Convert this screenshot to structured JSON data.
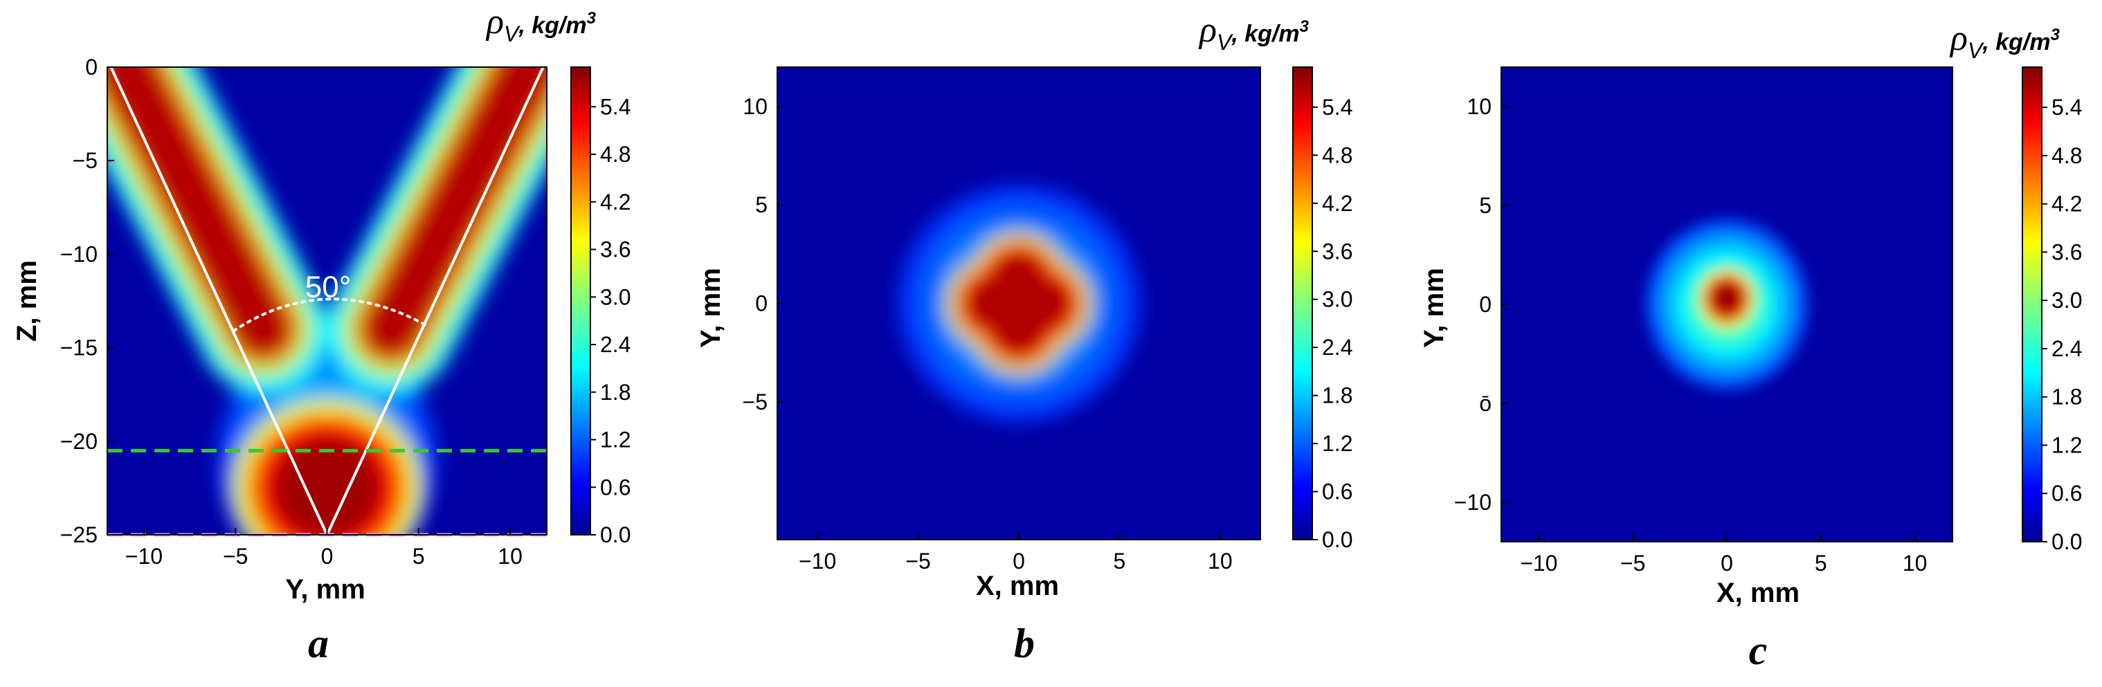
{
  "chart_data": [
    {
      "type": "heatmap",
      "panel_label": "a",
      "xlabel": "Y, mm",
      "ylabel": "Z, mm",
      "colorbar_label": "ρ",
      "colorbar_subscript": "V",
      "colorbar_unit": ", kg/m",
      "colorbar_unit_sup": "3",
      "xlim": [
        -12,
        12
      ],
      "ylim": [
        -25,
        0
      ],
      "xticks": [
        -10,
        -5,
        0,
        5,
        10
      ],
      "yticks": [
        0,
        -5,
        -10,
        -15,
        -20,
        -25
      ],
      "colorbar_ticks": [
        "5.4",
        "4.8",
        "4.2",
        "3.6",
        "3.0",
        "2.4",
        "1.8",
        "1.2",
        "0.6",
        "0.0"
      ],
      "colorbar_range": [
        0,
        5.9
      ],
      "colormap": "jet",
      "annotations": [
        {
          "text": "50°",
          "x": -1.2,
          "y": -12.3
        },
        {
          "kind": "line",
          "color": "#ffffff",
          "points": [
            [
              -11.8,
              0
            ],
            [
              0,
              -25
            ]
          ]
        },
        {
          "kind": "line",
          "color": "#ffffff",
          "points": [
            [
              11.8,
              0
            ],
            [
              0,
              -25
            ]
          ]
        },
        {
          "kind": "dotted-arc",
          "color": "#ffffff",
          "from": [
            -5.1,
            -14.1
          ],
          "apex": [
            0,
            -12.4
          ],
          "to": [
            5.6,
            -13.9
          ]
        },
        {
          "kind": "dashed-line",
          "color": "#33cc33",
          "y": -20.5
        },
        {
          "kind": "dashed-line",
          "color": "#dd99ee",
          "y": -25
        }
      ],
      "features": [
        {
          "shape": "jet",
          "from": [
            -11,
            0
          ],
          "to": [
            -3.5,
            -14
          ],
          "width_mm": 3.2,
          "peak": 5.9
        },
        {
          "shape": "jet",
          "from": [
            11,
            0
          ],
          "to": [
            3.5,
            -14
          ],
          "width_mm": 3.2,
          "peak": 5.9
        },
        {
          "shape": "blob",
          "center": [
            0,
            -22.5
          ],
          "radius_mm": [
            3.8,
            3.5
          ],
          "peak": 5.9
        },
        {
          "shape": "halo",
          "center": [
            0,
            -21
          ],
          "radius_mm": [
            6,
            6.5
          ],
          "peak": 2.6
        }
      ]
    },
    {
      "type": "heatmap",
      "panel_label": "b",
      "xlabel": "X, mm",
      "ylabel": "Y, mm",
      "colorbar_label": "ρ",
      "colorbar_subscript": "V",
      "colorbar_unit": ", kg/m",
      "colorbar_unit_sup": "3",
      "xlim": [
        -12,
        12
      ],
      "ylim": [
        -12,
        12
      ],
      "xticks": [
        -10,
        -5,
        0,
        5,
        10
      ],
      "yticks": [
        10,
        5,
        0,
        -5
      ],
      "colorbar_ticks": [
        "5.4",
        "4.8",
        "4.2",
        "3.6",
        "3.0",
        "2.4",
        "1.8",
        "1.2",
        "0.6",
        "0.0"
      ],
      "colorbar_range": [
        0,
        5.9
      ],
      "colormap": "jet",
      "features": [
        {
          "shape": "halo",
          "center": [
            0,
            0
          ],
          "radius_mm": [
            6,
            6
          ],
          "peak": 2.2
        },
        {
          "shape": "core",
          "center": [
            0,
            0
          ],
          "radius_mm": [
            2.8,
            2.8
          ],
          "peak": 5.8,
          "form": "four-lobed"
        }
      ]
    },
    {
      "type": "heatmap",
      "panel_label": "c",
      "xlabel": "X, mm",
      "ylabel": "Y, mm",
      "colorbar_label": "ρ",
      "colorbar_subscript": "V",
      "colorbar_unit": ", kg/m",
      "colorbar_unit_sup": "3",
      "xlim": [
        -12,
        12
      ],
      "ylim": [
        -12,
        12
      ],
      "xticks": [
        -10,
        -5,
        0,
        5,
        10
      ],
      "yticks": [
        10,
        5,
        0,
        -5,
        -10
      ],
      "ytick_labels": [
        "10",
        "5",
        "0",
        "ō",
        "−10"
      ],
      "colorbar_ticks": [
        "5.4",
        "4.8",
        "4.2",
        "3.6",
        "3.0",
        "2.4",
        "1.8",
        "1.2",
        "0.6",
        "0.0"
      ],
      "colorbar_range": [
        0,
        5.9
      ],
      "colormap": "jet",
      "features": [
        {
          "shape": "halo",
          "center": [
            0,
            0
          ],
          "radius_mm": [
            4.3,
            4.3
          ],
          "peak": 3.3
        },
        {
          "shape": "core",
          "center": [
            0,
            0.3
          ],
          "radius_mm": [
            1.1,
            1.1
          ],
          "peak": 5.9
        }
      ]
    }
  ]
}
